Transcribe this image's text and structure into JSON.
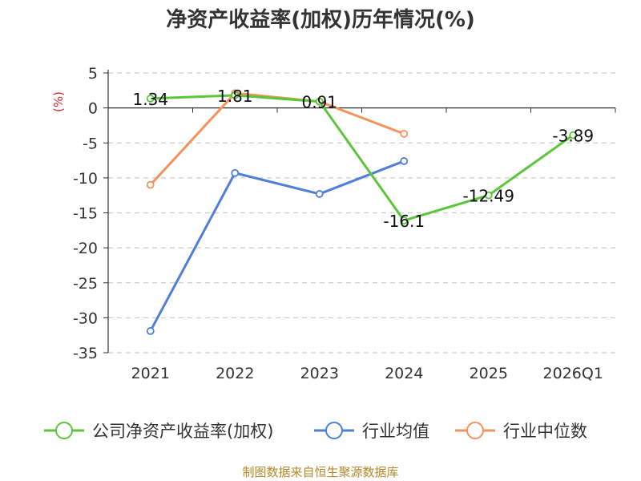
{
  "chart_data": {
    "type": "line",
    "title": "净资产收益率(加权)历年情况(%)",
    "ylabel": "(%)",
    "categories": [
      "2021",
      "2022",
      "2023",
      "2024",
      "2025",
      "2026Q1"
    ],
    "ylim": [
      -35,
      5
    ],
    "yticks": [
      5,
      0,
      -5,
      -10,
      -15,
      -20,
      -25,
      -30,
      -35
    ],
    "grid": true,
    "legend_position": "bottom",
    "series": [
      {
        "name": "公司净资产收益率(加权)",
        "color": "#5cc63a",
        "values": [
          1.34,
          1.81,
          0.91,
          -16.1,
          -12.49,
          -3.89
        ],
        "labels": [
          "1.34",
          "1.81",
          "0.91",
          "-16.1",
          "-12.49",
          "-3.89"
        ]
      },
      {
        "name": "行业均值",
        "color": "#4f7fd8",
        "values": [
          -31.9,
          -9.3,
          -12.3,
          -7.6,
          null,
          null
        ]
      },
      {
        "name": "行业中位数",
        "color": "#f5915a",
        "values": [
          -11.0,
          2.1,
          0.9,
          -3.7,
          null,
          null
        ]
      }
    ]
  },
  "source": "制图数据来自恒生聚源数据库"
}
